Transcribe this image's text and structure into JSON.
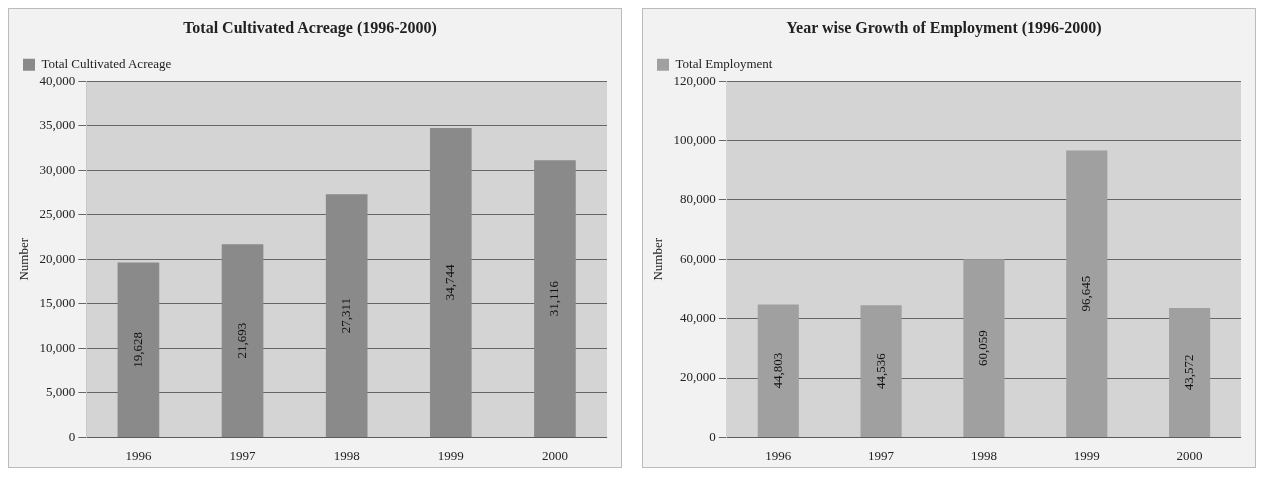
{
  "chart_data": [
    {
      "type": "bar",
      "title": "Total Cultivated Acreage (1996-2000)",
      "ylabel": "Number",
      "categories": [
        "1996",
        "1997",
        "1998",
        "1999",
        "2000"
      ],
      "series": [
        {
          "name": "Total Cultivated Acreage",
          "color": "#8a8a8a",
          "values": [
            19628,
            21693,
            27311,
            34744,
            31116
          ],
          "value_labels": [
            "19,628",
            "21,693",
            "27,311",
            "34,744",
            "31,116"
          ]
        }
      ],
      "ylim": [
        0,
        40000
      ],
      "yticks": [
        {
          "value": 0,
          "label": "0"
        },
        {
          "value": 5000,
          "label": "5,000"
        },
        {
          "value": 10000,
          "label": "10,000"
        },
        {
          "value": 15000,
          "label": "15,000"
        },
        {
          "value": 20000,
          "label": "20,000"
        },
        {
          "value": 25000,
          "label": "25,000"
        },
        {
          "value": 30000,
          "label": "30,000"
        },
        {
          "value": 35000,
          "label": "35,000"
        },
        {
          "value": 40000,
          "label": "40,000"
        }
      ],
      "grid": "y",
      "legend": "top left"
    },
    {
      "type": "bar",
      "title": "Year wise Growth of Employment (1996-2000)",
      "ylabel": "Number",
      "categories": [
        "1996",
        "1997",
        "1998",
        "1999",
        "2000"
      ],
      "series": [
        {
          "name": "Total Employment",
          "color": "#a0a0a0",
          "values": [
            44803,
            44536,
            60059,
            96645,
            43572
          ],
          "value_labels": [
            "44,803",
            "44,536",
            "60,059",
            "96,645",
            "43,572"
          ]
        }
      ],
      "ylim": [
        0,
        120000
      ],
      "yticks": [
        {
          "value": 0,
          "label": "0"
        },
        {
          "value": 20000,
          "label": "20,000"
        },
        {
          "value": 40000,
          "label": "40,000"
        },
        {
          "value": 60000,
          "label": "60,000"
        },
        {
          "value": 80000,
          "label": "80,000"
        },
        {
          "value": 100000,
          "label": "100,000"
        },
        {
          "value": 120000,
          "label": "120,000"
        }
      ],
      "grid": "y",
      "legend": "top left"
    }
  ]
}
